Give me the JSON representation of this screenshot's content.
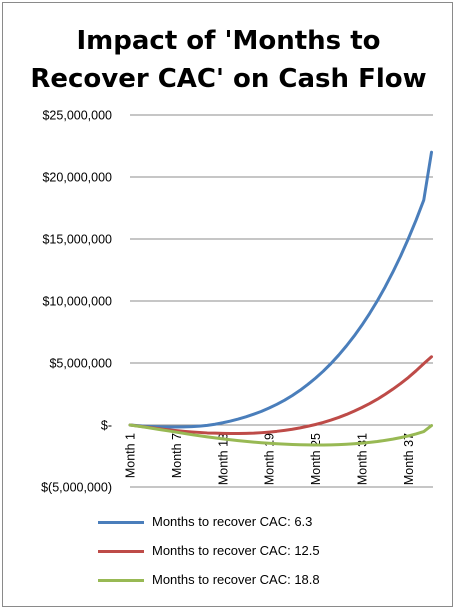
{
  "chart_data": {
    "type": "line",
    "title": [
      "Impact of 'Months to",
      "Recover CAC' on Cash Flow"
    ],
    "xlabel": "",
    "ylabel": "",
    "x": [
      1,
      2,
      3,
      4,
      5,
      6,
      7,
      8,
      9,
      10,
      11,
      12,
      13,
      14,
      15,
      16,
      17,
      18,
      19,
      20,
      21,
      22,
      23,
      24,
      25,
      26,
      27,
      28,
      29,
      30,
      31,
      32,
      33,
      34,
      35,
      36,
      37,
      38,
      39,
      40
    ],
    "x_tick_labels": [
      {
        "x": 1,
        "label": "Month 1"
      },
      {
        "x": 7,
        "label": "Month 7"
      },
      {
        "x": 13,
        "label": "Month 13"
      },
      {
        "x": 19,
        "label": "Month 19"
      },
      {
        "x": 25,
        "label": "Month 25"
      },
      {
        "x": 31,
        "label": "Month 31"
      },
      {
        "x": 37,
        "label": "Month 37"
      }
    ],
    "y_ticks": [
      {
        "value": 25000000,
        "label": "$25,000,000"
      },
      {
        "value": 20000000,
        "label": "$20,000,000"
      },
      {
        "value": 15000000,
        "label": "$15,000,000"
      },
      {
        "value": 10000000,
        "label": "$10,000,000"
      },
      {
        "value": 5000000,
        "label": "$5,000,000"
      },
      {
        "value": 0,
        "label": "$-"
      },
      {
        "value": -5000000,
        "label": "$(5,000,000)"
      }
    ],
    "ylim": [
      -5000000,
      25000000
    ],
    "grid": true,
    "legend_position": "bottom",
    "series": [
      {
        "name": "Months to recover CAC: 6.3",
        "color": "#4a7ebb",
        "values": [
          0,
          -50000,
          -100000,
          -130000,
          -150000,
          -160000,
          -160000,
          -150000,
          -130000,
          -90000,
          -30000,
          60000,
          180000,
          320000,
          480000,
          660000,
          870000,
          1100000,
          1370000,
          1670000,
          2000000,
          2380000,
          2800000,
          3270000,
          3780000,
          4340000,
          4960000,
          5640000,
          6380000,
          7180000,
          8050000,
          9000000,
          10020000,
          11130000,
          12330000,
          13620000,
          15020000,
          16520000,
          18140000,
          22000000
        ]
      },
      {
        "name": "Months to recover CAC: 12.5",
        "color": "#be4b48",
        "values": [
          0,
          -80000,
          -160000,
          -240000,
          -320000,
          -390000,
          -450000,
          -510000,
          -560000,
          -600000,
          -640000,
          -660000,
          -680000,
          -690000,
          -690000,
          -680000,
          -660000,
          -620000,
          -570000,
          -510000,
          -430000,
          -340000,
          -230000,
          -100000,
          40000,
          210000,
          400000,
          610000,
          850000,
          1120000,
          1410000,
          1730000,
          2080000,
          2470000,
          2890000,
          3340000,
          3830000,
          4370000,
          4950000,
          5500000
        ]
      },
      {
        "name": "Months to recover CAC: 18.8",
        "color": "#98b954",
        "values": [
          0,
          -90000,
          -180000,
          -280000,
          -380000,
          -480000,
          -580000,
          -680000,
          -780000,
          -870000,
          -960000,
          -1040000,
          -1120000,
          -1190000,
          -1260000,
          -1320000,
          -1380000,
          -1430000,
          -1470000,
          -1510000,
          -1540000,
          -1570000,
          -1590000,
          -1600000,
          -1610000,
          -1610000,
          -1600000,
          -1580000,
          -1550000,
          -1510000,
          -1460000,
          -1400000,
          -1330000,
          -1240000,
          -1140000,
          -1020000,
          -880000,
          -720000,
          -530000,
          -50000
        ]
      }
    ]
  }
}
